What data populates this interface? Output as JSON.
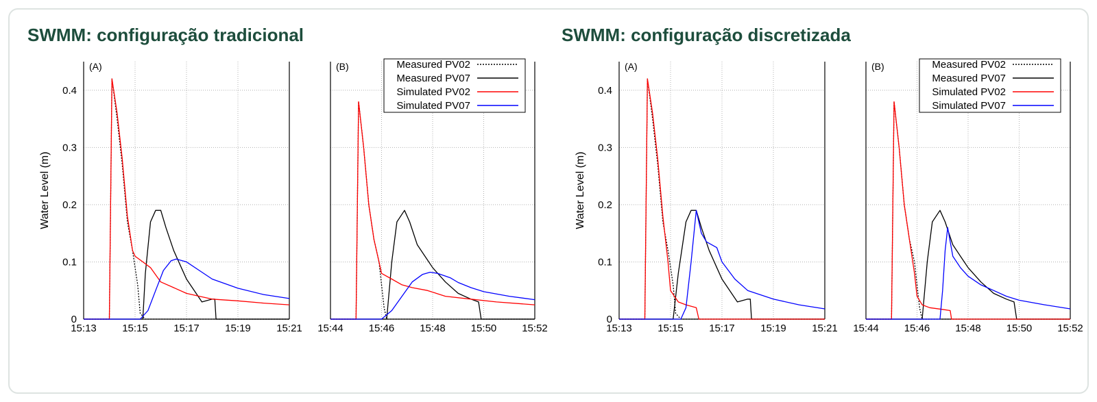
{
  "titles": {
    "left": "SWMM: configuração tradicional",
    "right": "SWMM: configuração discretizada"
  },
  "colors": {
    "title": "#1d4d3c",
    "measured_pv02": "#000000",
    "measured_pv07": "#000000",
    "simulated_pv02": "#ff0000",
    "simulated_pv07": "#0000ff",
    "grid": "#b0b0b0"
  },
  "chart_data": [
    {
      "type": "line",
      "panel": "(A)",
      "group": "SWMM: configuração tradicional",
      "ylabel": "Water Level (m)",
      "xlabel": "",
      "ylim": [
        0,
        0.45
      ],
      "yticks": [
        "0",
        "0.1",
        "0.2",
        "0.3",
        "0.4"
      ],
      "xticks": [
        "15:13",
        "15:15",
        "15:17",
        "15:19",
        "15:21"
      ],
      "grid": true,
      "series": [
        {
          "name": "Measured PV02",
          "style": "dotted",
          "x": [
            "15:13",
            "15:14",
            "15:14:06",
            "15:14:18",
            "15:14:30",
            "15:14:42",
            "15:14:54",
            "15:15:06",
            "15:15:12",
            "15:15:24",
            "15:15:36",
            "15:21"
          ],
          "y": [
            0,
            0,
            0.42,
            0.35,
            0.27,
            0.17,
            0.12,
            0.06,
            0.01,
            0,
            0,
            0
          ]
        },
        {
          "name": "Measured PV07",
          "x": [
            "15:13",
            "15:15:18",
            "15:15:24",
            "15:15:36",
            "15:15:48",
            "15:16",
            "15:16:12",
            "15:16:30",
            "15:16:48",
            "15:17",
            "15:17:18",
            "15:17:36",
            "15:18",
            "15:18:06",
            "15:18:09",
            "15:21"
          ],
          "y": [
            0,
            0,
            0.08,
            0.17,
            0.19,
            0.19,
            0.16,
            0.12,
            0.09,
            0.07,
            0.05,
            0.03,
            0.035,
            0.035,
            0,
            0
          ]
        },
        {
          "name": "Simulated PV02",
          "x": [
            "15:13",
            "15:14",
            "15:14:06",
            "15:14:18",
            "15:14:30",
            "15:14:42",
            "15:14:54",
            "15:15",
            "15:15:18",
            "15:15:36",
            "15:16",
            "15:16:30",
            "15:17",
            "15:17:30",
            "15:18",
            "15:19",
            "15:20",
            "15:21"
          ],
          "y": [
            0,
            0,
            0.42,
            0.36,
            0.28,
            0.18,
            0.12,
            0.11,
            0.1,
            0.09,
            0.065,
            0.055,
            0.045,
            0.04,
            0.035,
            0.032,
            0.028,
            0.025
          ]
        },
        {
          "name": "Simulated PV07",
          "x": [
            "15:13",
            "15:15:12",
            "15:15:30",
            "15:15:48",
            "15:16:06",
            "15:16:24",
            "15:16:36",
            "15:17",
            "15:17:30",
            "15:18",
            "15:19",
            "15:20",
            "15:21"
          ],
          "y": [
            0,
            0,
            0.015,
            0.05,
            0.085,
            0.102,
            0.105,
            0.1,
            0.085,
            0.07,
            0.054,
            0.043,
            0.036
          ]
        }
      ]
    },
    {
      "type": "line",
      "panel": "(B)",
      "group": "SWMM: configuração tradicional",
      "ylim": [
        0,
        0.45
      ],
      "xticks": [
        "15:44",
        "15:46",
        "15:48",
        "15:50",
        "15:52"
      ],
      "grid": true,
      "legend": [
        "Measured PV02",
        "Measured PV07",
        "Simulated PV02",
        "Simulated PV07"
      ],
      "legend_position": "top-right",
      "series": [
        {
          "name": "Measured PV02",
          "style": "dotted",
          "x": [
            "15:44",
            "15:45",
            "15:45:06",
            "15:45:18",
            "15:45:30",
            "15:45:42",
            "15:45:54",
            "15:46",
            "15:46:06",
            "15:46:12",
            "15:52"
          ],
          "y": [
            0,
            0,
            0.38,
            0.3,
            0.2,
            0.14,
            0.1,
            0.06,
            0.02,
            0,
            0
          ]
        },
        {
          "name": "Measured PV07",
          "x": [
            "15:44",
            "15:46:12",
            "15:46:24",
            "15:46:36",
            "15:46:54",
            "15:47:06",
            "15:47:24",
            "15:47:42",
            "15:48",
            "15:48:30",
            "15:49",
            "15:49:30",
            "15:49:48",
            "15:49:54",
            "15:52"
          ],
          "y": [
            0,
            0,
            0.1,
            0.17,
            0.19,
            0.17,
            0.13,
            0.11,
            0.09,
            0.065,
            0.045,
            0.035,
            0.03,
            0,
            0
          ]
        },
        {
          "name": "Simulated PV02",
          "x": [
            "15:44",
            "15:45",
            "15:45:06",
            "15:45:18",
            "15:45:30",
            "15:45:42",
            "15:45:54",
            "15:46",
            "15:46:24",
            "15:46:48",
            "15:47:12",
            "15:47:48",
            "15:48:30",
            "15:49:30",
            "15:50:30",
            "15:52"
          ],
          "y": [
            0,
            0,
            0.38,
            0.3,
            0.2,
            0.14,
            0.1,
            0.08,
            0.07,
            0.06,
            0.055,
            0.05,
            0.04,
            0.035,
            0.03,
            0.025
          ]
        },
        {
          "name": "Simulated PV07",
          "x": [
            "15:44",
            "15:46",
            "15:46:24",
            "15:46:48",
            "15:47:12",
            "15:47:36",
            "15:47:54",
            "15:48:12",
            "15:48:42",
            "15:49",
            "15:49:30",
            "15:50",
            "15:51",
            "15:52"
          ],
          "y": [
            0,
            0,
            0.015,
            0.04,
            0.065,
            0.078,
            0.082,
            0.08,
            0.072,
            0.064,
            0.055,
            0.048,
            0.04,
            0.034
          ]
        }
      ]
    },
    {
      "type": "line",
      "panel": "(A)",
      "group": "SWMM: configuração discretizada",
      "ylabel": "Water Level (m)",
      "ylim": [
        0,
        0.45
      ],
      "yticks": [
        "0",
        "0.1",
        "0.2",
        "0.3",
        "0.4"
      ],
      "xticks": [
        "15:13",
        "15:15",
        "15:17",
        "15:19",
        "15:21"
      ],
      "grid": true,
      "series": [
        {
          "name": "Measured PV02",
          "style": "dotted",
          "x": [
            "15:13",
            "15:14",
            "15:14:06",
            "15:14:18",
            "15:14:30",
            "15:14:42",
            "15:14:54",
            "15:15:06",
            "15:15:12",
            "15:15:24",
            "15:15:36",
            "15:21"
          ],
          "y": [
            0,
            0,
            0.42,
            0.35,
            0.27,
            0.17,
            0.12,
            0.06,
            0.01,
            0,
            0,
            0
          ]
        },
        {
          "name": "Measured PV07",
          "x": [
            "15:13",
            "15:15:06",
            "15:15:18",
            "15:15:36",
            "15:15:48",
            "15:16",
            "15:16:12",
            "15:16:30",
            "15:16:48",
            "15:17",
            "15:17:18",
            "15:17:36",
            "15:18",
            "15:18:06",
            "15:18:09",
            "15:21"
          ],
          "y": [
            0,
            0,
            0.08,
            0.17,
            0.19,
            0.19,
            0.16,
            0.12,
            0.09,
            0.07,
            0.05,
            0.03,
            0.035,
            0.035,
            0,
            0
          ]
        },
        {
          "name": "Simulated PV02",
          "x": [
            "15:13",
            "15:14",
            "15:14:06",
            "15:14:18",
            "15:14:30",
            "15:14:42",
            "15:14:54",
            "15:15",
            "15:15:18",
            "15:15:36",
            "15:16",
            "15:16:06",
            "15:21"
          ],
          "y": [
            0,
            0,
            0.42,
            0.36,
            0.28,
            0.18,
            0.1,
            0.05,
            0.03,
            0.025,
            0.02,
            0,
            0
          ]
        },
        {
          "name": "Simulated PV07",
          "x": [
            "15:13",
            "15:15:24",
            "15:15:36",
            "15:15:48",
            "15:16",
            "15:16:12",
            "15:16:24",
            "15:16:48",
            "15:17",
            "15:17:30",
            "15:18",
            "15:19",
            "15:20",
            "15:21"
          ],
          "y": [
            0,
            0,
            0.02,
            0.1,
            0.19,
            0.15,
            0.135,
            0.125,
            0.1,
            0.07,
            0.05,
            0.035,
            0.025,
            0.018
          ]
        }
      ]
    },
    {
      "type": "line",
      "panel": "(B)",
      "group": "SWMM: configuração discretizada",
      "ylim": [
        0,
        0.45
      ],
      "xticks": [
        "15:44",
        "15:46",
        "15:48",
        "15:50",
        "15:52"
      ],
      "grid": true,
      "legend": [
        "Measured PV02",
        "Measured PV07",
        "Simulated PV02",
        "Simulated PV07"
      ],
      "legend_position": "top-right",
      "series": [
        {
          "name": "Measured PV02",
          "style": "dotted",
          "x": [
            "15:44",
            "15:45",
            "15:45:06",
            "15:45:18",
            "15:45:30",
            "15:45:42",
            "15:45:54",
            "15:46",
            "15:46:06",
            "15:46:12",
            "15:52"
          ],
          "y": [
            0,
            0,
            0.38,
            0.3,
            0.2,
            0.14,
            0.1,
            0.06,
            0.02,
            0,
            0
          ]
        },
        {
          "name": "Measured PV07",
          "x": [
            "15:44",
            "15:46:12",
            "15:46:24",
            "15:46:36",
            "15:46:54",
            "15:47:06",
            "15:47:24",
            "15:47:42",
            "15:48",
            "15:48:30",
            "15:49",
            "15:49:30",
            "15:49:48",
            "15:49:54",
            "15:52"
          ],
          "y": [
            0,
            0,
            0.1,
            0.17,
            0.19,
            0.17,
            0.13,
            0.11,
            0.09,
            0.065,
            0.045,
            0.035,
            0.03,
            0,
            0
          ]
        },
        {
          "name": "Simulated PV02",
          "x": [
            "15:44",
            "15:45",
            "15:45:06",
            "15:45:18",
            "15:45:30",
            "15:45:42",
            "15:45:54",
            "15:46",
            "15:46:12",
            "15:46:30",
            "15:47",
            "15:47:18",
            "15:47:21",
            "15:52"
          ],
          "y": [
            0,
            0,
            0.38,
            0.3,
            0.2,
            0.14,
            0.08,
            0.04,
            0.025,
            0.02,
            0.017,
            0.015,
            0,
            0
          ]
        },
        {
          "name": "Simulated PV07",
          "x": [
            "15:44",
            "15:46:54",
            "15:47",
            "15:47:06",
            "15:47:12",
            "15:47:24",
            "15:47:42",
            "15:48",
            "15:48:30",
            "15:49",
            "15:49:30",
            "15:50",
            "15:51",
            "15:52"
          ],
          "y": [
            0,
            0,
            0.05,
            0.12,
            0.16,
            0.11,
            0.09,
            0.075,
            0.06,
            0.05,
            0.04,
            0.033,
            0.025,
            0.018
          ]
        }
      ]
    }
  ]
}
